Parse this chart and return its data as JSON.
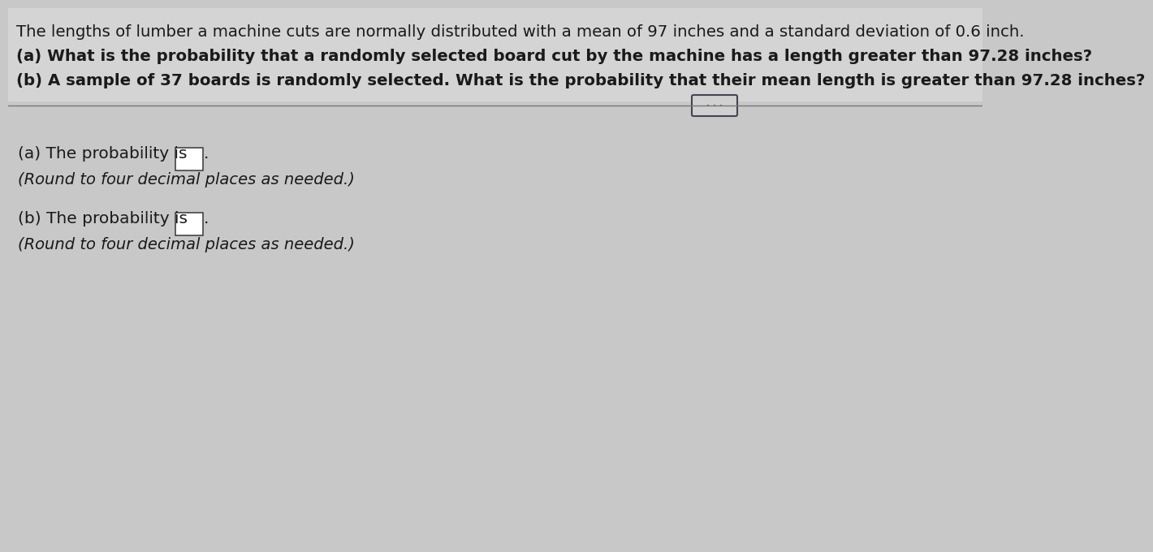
{
  "bg_color": "#c8c8c8",
  "top_bg_color": "#d0d0d0",
  "line1": "The lengths of lumber a machine cuts are normally distributed with a mean of 97 inches and a standard deviation of 0.6 inch.",
  "line2": "(a) What is the probability that a randomly selected board cut by the machine has a length greater than 97.28 inches?",
  "line3": "(b) A sample of 37 boards is randomly selected. What is the probability that their mean length is greater than 97.28 inches?",
  "part_a_label": "(a) The probability is",
  "part_a_round": "(Round to four decimal places as needed.)",
  "part_b_label": "(b) The probability is",
  "part_b_round": "(Round to four decimal places as needed.)",
  "text_color": "#1a1a1a",
  "box_color": "#ffffff",
  "box_edge_color": "#444444",
  "font_size_header": 14.2,
  "font_size_body": 14.5,
  "font_size_round": 14.0
}
